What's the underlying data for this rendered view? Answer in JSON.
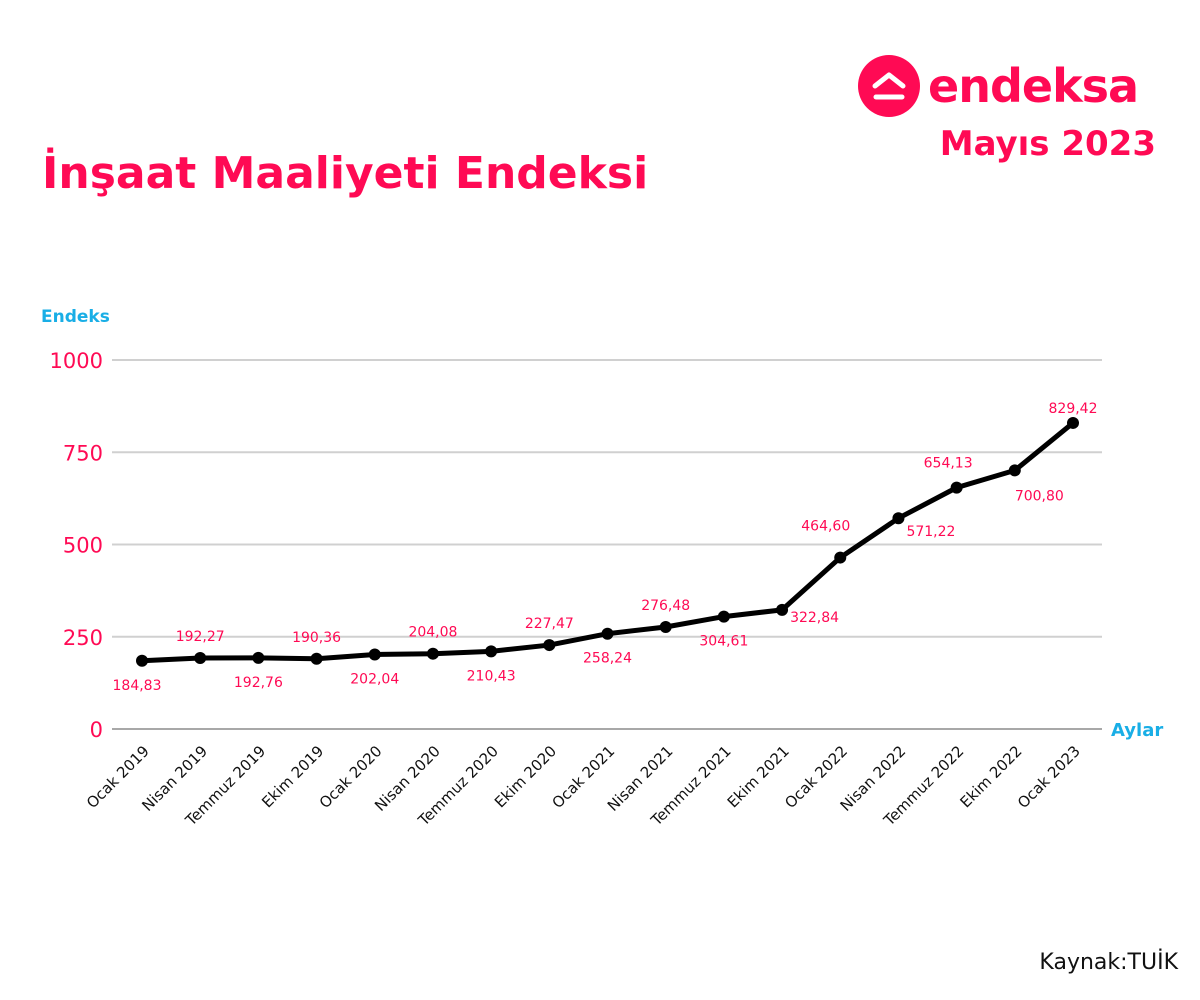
{
  "brand": {
    "name": "endeksa",
    "icon": "house-up-chevron-icon",
    "color": "#ff0a54"
  },
  "period": "Mayıs 2023",
  "title": "İnşaat Maaliyeti Endeksi",
  "source": "Kaynak:TUİK",
  "chart_data": {
    "type": "line",
    "title": "İnşaat Maaliyeti Endeksi",
    "xlabel": "Aylar",
    "ylabel": "Endeks",
    "ylim": [
      0,
      1000
    ],
    "yticks": [
      "0",
      "250",
      "500",
      "750",
      "1000"
    ],
    "ytick_values": [
      0,
      250,
      500,
      750,
      1000
    ],
    "grid": true,
    "categories": [
      "Ocak 2019",
      "Nisan 2019",
      "Temmuz 2019",
      "Ekim 2019",
      "Ocak 2020",
      "Nisan 2020",
      "Temmuz 2020",
      "Ekim 2020",
      "Ocak 2021",
      "Nisan 2021",
      "Temmuz 2021",
      "Ekim 2021",
      "Ocak 2022",
      "Nisan 2022",
      "Temmuz 2022",
      "Ekim 2022",
      "Ocak 2023"
    ],
    "series": [
      {
        "name": "Endeks",
        "color": "#000000",
        "values": [
          184.83,
          192.27,
          192.76,
          190.36,
          202.04,
          204.08,
          210.43,
          227.47,
          258.24,
          276.48,
          304.61,
          322.84,
          464.6,
          571.22,
          654.13,
          700.8,
          829.42
        ],
        "labels": [
          "184,83",
          "192,27",
          "192,76",
          "190,36",
          "202,04",
          "204,08",
          "210,43",
          "227,47",
          "258,24",
          "276,48",
          "304,61",
          "322,84",
          "464,60",
          "571,22",
          "654,13",
          "700,80",
          "829,42"
        ],
        "label_positions": [
          "below",
          "above",
          "below",
          "above",
          "below",
          "above",
          "below",
          "above",
          "below",
          "above",
          "below",
          "below-right",
          "above-left",
          "below-right",
          "above-left",
          "below-right",
          "above"
        ]
      }
    ],
    "colors": {
      "tick": "#ff0a54",
      "axis_label": "#19aee6",
      "grid": "#d0d0d0",
      "line": "#000000"
    }
  }
}
